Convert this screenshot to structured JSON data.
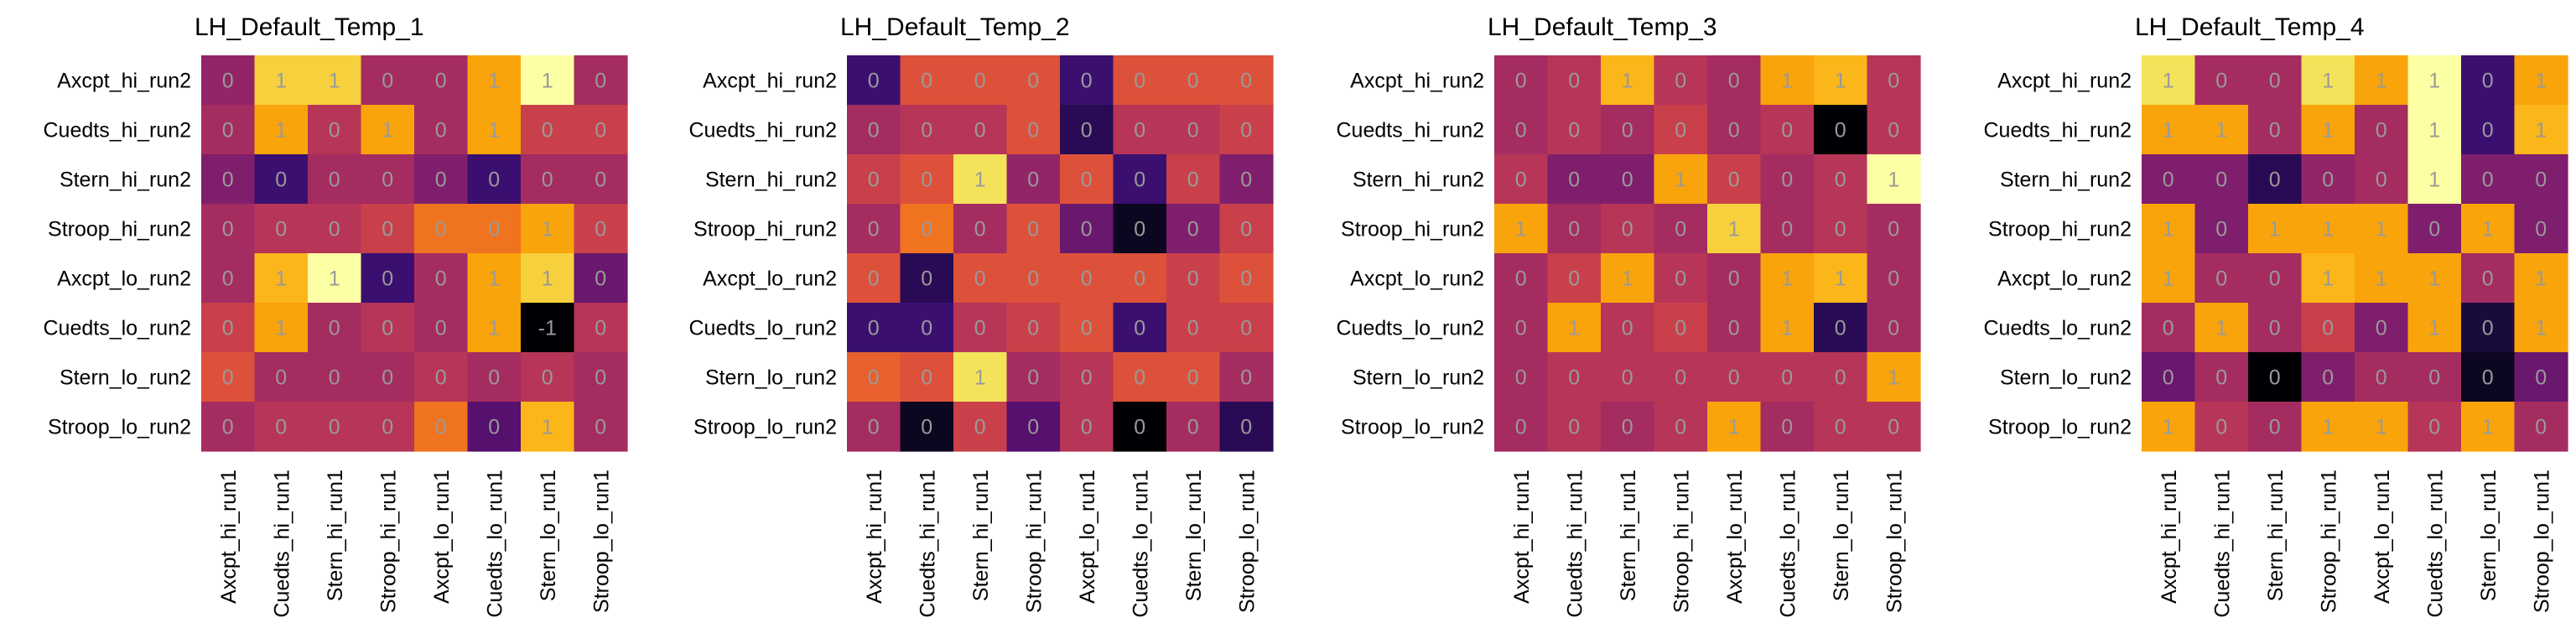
{
  "palette": {
    "-1": "#000004",
    "0": [
      "#280b54",
      "#3b0f70",
      "#56106e",
      "#6a176e",
      "#7f1e6c",
      "#922568",
      "#a52c60",
      "#b73557",
      "#c9404a",
      "#dd513a",
      "#e8602d",
      "#f0731f"
    ],
    "1": [
      "#f9a40a",
      "#fbb61a",
      "#f7d13d",
      "#f3e35a",
      "#fcffa4"
    ],
    "zero_dark": "#1a0b3d"
  },
  "cell_text_color": "#9a9a9a",
  "chart_data": [
    {
      "type": "heatmap",
      "title": "LH_Default_Temp_1",
      "x_labels": [
        "Axcpt_hi_run1",
        "Cuedts_hi_run1",
        "Stern_hi_run1",
        "Stroop_hi_run1",
        "Axcpt_lo_run1",
        "Cuedts_lo_run1",
        "Stern_lo_run1",
        "Stroop_lo_run1"
      ],
      "y_labels": [
        "Axcpt_hi_run2",
        "Cuedts_hi_run2",
        "Stern_hi_run2",
        "Stroop_hi_run2",
        "Axcpt_lo_run2",
        "Cuedts_lo_run2",
        "Stern_lo_run2",
        "Stroop_lo_run2"
      ],
      "values": [
        [
          0,
          1,
          1,
          0,
          0,
          1,
          1,
          0
        ],
        [
          0,
          1,
          0,
          1,
          0,
          1,
          0,
          0
        ],
        [
          0,
          0,
          0,
          0,
          0,
          0,
          0,
          0
        ],
        [
          0,
          0,
          0,
          0,
          0,
          0,
          1,
          0
        ],
        [
          0,
          1,
          1,
          0,
          0,
          1,
          1,
          0
        ],
        [
          0,
          1,
          0,
          0,
          0,
          1,
          -1,
          0
        ],
        [
          0,
          0,
          0,
          0,
          0,
          0,
          0,
          0
        ],
        [
          0,
          0,
          0,
          0,
          0,
          0,
          1,
          0
        ]
      ],
      "shade": [
        [
          5,
          2,
          2,
          6,
          6,
          0,
          4,
          6
        ],
        [
          6,
          0,
          7,
          0,
          6,
          0,
          8,
          8
        ],
        [
          4,
          1,
          6,
          6,
          4,
          1,
          6,
          6
        ],
        [
          6,
          7,
          7,
          8,
          11,
          12,
          0,
          8
        ],
        [
          6,
          1,
          4,
          1,
          6,
          0,
          2,
          3
        ],
        [
          8,
          0,
          6,
          7,
          6,
          0,
          0,
          7
        ],
        [
          9,
          6,
          6,
          6,
          7,
          6,
          7,
          6
        ],
        [
          6,
          7,
          7,
          7,
          12,
          2,
          1,
          6
        ]
      ]
    },
    {
      "type": "heatmap",
      "title": "LH_Default_Temp_2",
      "x_labels": [
        "Axcpt_hi_run1",
        "Cuedts_hi_run1",
        "Stern_hi_run1",
        "Stroop_hi_run1",
        "Axcpt_lo_run1",
        "Cuedts_lo_run1",
        "Stern_lo_run1",
        "Stroop_lo_run1"
      ],
      "y_labels": [
        "Axcpt_hi_run2",
        "Cuedts_hi_run2",
        "Stern_hi_run2",
        "Stroop_hi_run2",
        "Axcpt_lo_run2",
        "Cuedts_lo_run2",
        "Stern_lo_run2",
        "Stroop_lo_run2"
      ],
      "values": [
        [
          0,
          0,
          0,
          0,
          0,
          0,
          0,
          0
        ],
        [
          0,
          0,
          0,
          0,
          0,
          0,
          0,
          0
        ],
        [
          0,
          0,
          1,
          0,
          0,
          0,
          0,
          0
        ],
        [
          0,
          0,
          0,
          0,
          0,
          0,
          0,
          0
        ],
        [
          0,
          0,
          0,
          0,
          0,
          0,
          0,
          0
        ],
        [
          0,
          0,
          0,
          0,
          0,
          0,
          0,
          0
        ],
        [
          0,
          0,
          1,
          0,
          0,
          0,
          0,
          0
        ],
        [
          0,
          0,
          0,
          0,
          0,
          0,
          0,
          0
        ]
      ],
      "shade": [
        [
          1,
          9,
          9,
          9,
          1,
          9,
          9,
          9
        ],
        [
          6,
          7,
          7,
          9,
          13,
          7,
          7,
          8
        ],
        [
          8,
          9,
          3,
          5,
          9,
          1,
          8,
          4
        ],
        [
          6,
          12,
          6,
          9,
          3,
          15,
          4,
          8
        ],
        [
          9,
          0,
          9,
          9,
          9,
          9,
          8,
          9
        ],
        [
          1,
          1,
          7,
          8,
          9,
          1,
          8,
          8
        ],
        [
          10,
          9,
          3,
          6,
          7,
          9,
          9,
          6
        ],
        [
          6,
          15,
          8,
          2,
          7,
          16,
          6,
          0
        ]
      ]
    },
    {
      "type": "heatmap",
      "title": "LH_Default_Temp_3",
      "x_labels": [
        "Axcpt_hi_run1",
        "Cuedts_hi_run1",
        "Stern_hi_run1",
        "Stroop_hi_run1",
        "Axcpt_lo_run1",
        "Cuedts_lo_run1",
        "Stern_lo_run1",
        "Stroop_lo_run1"
      ],
      "y_labels": [
        "Axcpt_hi_run2",
        "Cuedts_hi_run2",
        "Stern_hi_run2",
        "Stroop_hi_run2",
        "Axcpt_lo_run2",
        "Cuedts_lo_run2",
        "Stern_lo_run2",
        "Stroop_lo_run2"
      ],
      "values": [
        [
          0,
          0,
          1,
          0,
          0,
          1,
          1,
          0
        ],
        [
          0,
          0,
          0,
          0,
          0,
          0,
          0,
          0
        ],
        [
          0,
          0,
          0,
          1,
          0,
          0,
          0,
          1
        ],
        [
          1,
          0,
          0,
          0,
          1,
          0,
          0,
          0
        ],
        [
          0,
          0,
          1,
          0,
          0,
          1,
          1,
          0
        ],
        [
          0,
          1,
          0,
          0,
          0,
          1,
          0,
          0
        ],
        [
          0,
          0,
          0,
          0,
          0,
          0,
          0,
          1
        ],
        [
          0,
          0,
          0,
          0,
          1,
          0,
          0,
          0
        ]
      ],
      "shade": [
        [
          6,
          7,
          1,
          7,
          6,
          0,
          1,
          7
        ],
        [
          6,
          7,
          6,
          8,
          6,
          7,
          16,
          7
        ],
        [
          7,
          4,
          4,
          0,
          8,
          6,
          7,
          4
        ],
        [
          0,
          6,
          7,
          6,
          2,
          6,
          7,
          6
        ],
        [
          6,
          8,
          0,
          7,
          6,
          0,
          1,
          6
        ],
        [
          6,
          0,
          7,
          8,
          6,
          0,
          13,
          6
        ],
        [
          6,
          7,
          7,
          7,
          7,
          7,
          7,
          0
        ],
        [
          6,
          7,
          6,
          7,
          0,
          6,
          7,
          7
        ]
      ]
    },
    {
      "type": "heatmap",
      "title": "LH_Default_Temp_4",
      "x_labels": [
        "Axcpt_hi_run1",
        "Cuedts_hi_run1",
        "Stern_hi_run1",
        "Stroop_hi_run1",
        "Axcpt_lo_run1",
        "Cuedts_lo_run1",
        "Stern_lo_run1",
        "Stroop_lo_run1"
      ],
      "y_labels": [
        "Axcpt_hi_run2",
        "Cuedts_hi_run2",
        "Stern_hi_run2",
        "Stroop_hi_run2",
        "Axcpt_lo_run2",
        "Cuedts_lo_run2",
        "Stern_lo_run2",
        "Stroop_lo_run2"
      ],
      "values": [
        [
          1,
          0,
          0,
          1,
          1,
          1,
          0,
          1
        ],
        [
          1,
          1,
          0,
          1,
          0,
          1,
          0,
          1
        ],
        [
          0,
          0,
          0,
          0,
          0,
          1,
          0,
          0
        ],
        [
          1,
          0,
          1,
          1,
          1,
          0,
          1,
          0
        ],
        [
          1,
          0,
          0,
          1,
          1,
          1,
          0,
          1
        ],
        [
          0,
          1,
          0,
          0,
          0,
          1,
          0,
          1
        ],
        [
          0,
          0,
          0,
          0,
          0,
          0,
          0,
          0
        ],
        [
          1,
          0,
          0,
          1,
          1,
          0,
          1,
          0
        ]
      ],
      "shade": [
        [
          3,
          6,
          6,
          3,
          0,
          7,
          1,
          0
        ],
        [
          0,
          0,
          6,
          0,
          6,
          7,
          1,
          1
        ],
        [
          4,
          4,
          13,
          5,
          6,
          7,
          4,
          4
        ],
        [
          0,
          4,
          0,
          0,
          0,
          4,
          0,
          4
        ],
        [
          0,
          6,
          6,
          1,
          0,
          0,
          6,
          0
        ],
        [
          6,
          0,
          6,
          8,
          4,
          0,
          14,
          0
        ],
        [
          3,
          6,
          16,
          4,
          6,
          6,
          15,
          3
        ],
        [
          0,
          7,
          6,
          0,
          0,
          7,
          0,
          6
        ]
      ]
    }
  ]
}
